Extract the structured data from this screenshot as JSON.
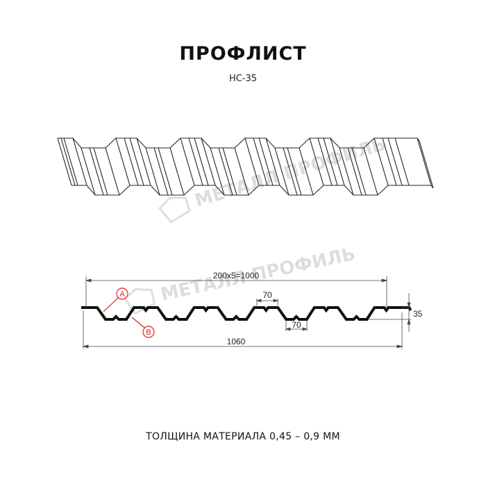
{
  "header": {
    "title": "ПРОФЛИСТ",
    "subtitle": "НС-35"
  },
  "watermark": {
    "text": "МЕТАЛЛ ПРОФИЛЬ"
  },
  "drawing": {
    "dim_total_pitch": "200x5=1000",
    "dim_top_flange": "70",
    "dim_bottom_flange": "70",
    "dim_height": "35",
    "dim_full_width": "1060",
    "marker_a": "A",
    "marker_b": "B",
    "marker_color": "#e0201c"
  },
  "footer": {
    "material_thickness": "ТОЛЩИНА МАТЕРИАЛА 0,45 – 0,9 ММ"
  }
}
